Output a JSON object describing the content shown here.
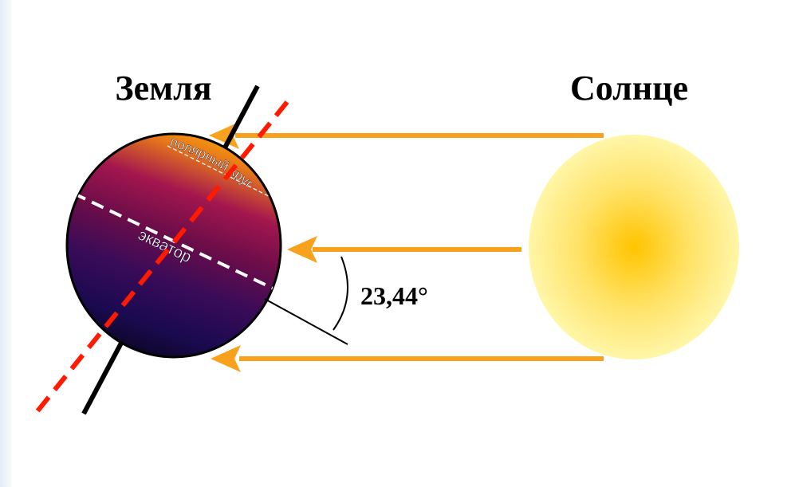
{
  "labels": {
    "earth": "Земля",
    "sun": "Солнце",
    "angle": "23,44°",
    "polar_circle": "полярный круг",
    "equator": "экватор"
  },
  "colors": {
    "sun_ray": "#f7a11c",
    "tilt_axis": "#ff1a00",
    "earth_axis": "#000000",
    "equator_line": "#ffffff",
    "sun_center": "#ffc400",
    "sun_edge": "#fff6a8"
  },
  "elements": {
    "earth": "earth-globe",
    "sun": "sun-disc",
    "rays": [
      "ray-top",
      "ray-middle",
      "ray-bottom"
    ]
  }
}
